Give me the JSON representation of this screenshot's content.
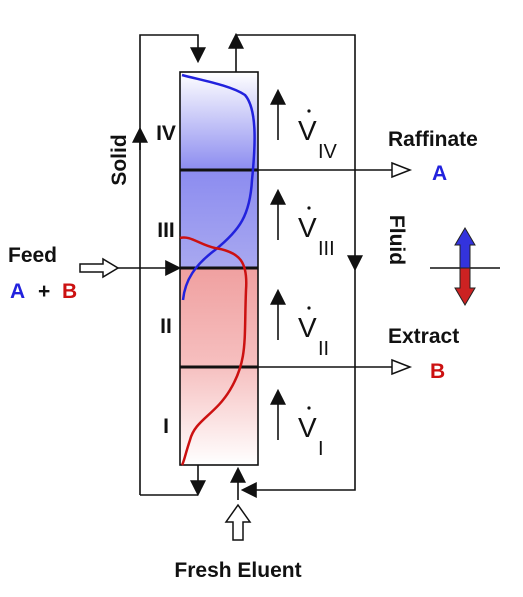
{
  "zones": [
    {
      "label": "IV",
      "flow": "V",
      "flow_sub": "IV"
    },
    {
      "label": "III",
      "flow": "V",
      "flow_sub": "III"
    },
    {
      "label": "II",
      "flow": "V",
      "flow_sub": "II"
    },
    {
      "label": "I",
      "flow": "V",
      "flow_sub": "I"
    }
  ],
  "solid_label": "Solid",
  "fluid_label": "Fluid",
  "raffinate": {
    "label": "Raffinate",
    "component": "A"
  },
  "feed": {
    "label": "Feed",
    "component_a": "A",
    "plus": "+",
    "component_b": "B"
  },
  "extract": {
    "label": "Extract",
    "component": "B"
  },
  "eluent": {
    "label": "Fresh Eluent"
  }
}
